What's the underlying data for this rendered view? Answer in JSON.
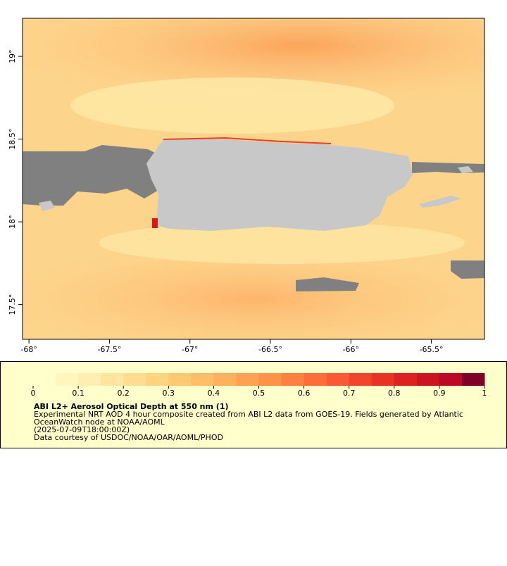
{
  "map": {
    "xlim": [
      -68.04,
      -65.17
    ],
    "ylim": [
      17.29,
      19.23
    ],
    "xticks": [
      {
        "value": -68,
        "label": "-68°"
      },
      {
        "value": -67.5,
        "label": "-67.5°"
      },
      {
        "value": -67,
        "label": "-67°"
      },
      {
        "value": -66.5,
        "label": "-66.5°"
      },
      {
        "value": -66,
        "label": "-66°"
      },
      {
        "value": -65.5,
        "label": "-65.5°"
      }
    ],
    "yticks": [
      {
        "value": 17.5,
        "label": "17.5°"
      },
      {
        "value": 18,
        "label": "18°"
      },
      {
        "value": 18.5,
        "label": "18.5°"
      },
      {
        "value": 19,
        "label": "19°"
      }
    ]
  },
  "colorbar": {
    "range": [
      0,
      1
    ],
    "ticks": [
      0,
      0.1,
      0.2,
      0.3,
      0.4,
      0.5,
      0.6,
      0.7,
      0.8,
      0.9,
      1
    ],
    "colors": [
      "#ffffcc",
      "#fff6bf",
      "#ffeeb0",
      "#fee6a0",
      "#fedd90",
      "#fed481",
      "#fec973",
      "#febe67",
      "#fdb15c",
      "#fda251",
      "#fd9347",
      "#fc8140",
      "#fc6d39",
      "#f95a33",
      "#f1452b",
      "#e83324",
      "#dc221f",
      "#cc141f",
      "#bc0824",
      "#800026"
    ],
    "title": "ABI L2+ Aerosol Optical Depth at 550 nm (1)",
    "description": [
      "Experimental NRT AOD 4 hour composite created from ABI L2 data from GOES-19. Fields generated by Atlantic",
      "OceanWatch node at NOAA/AOML",
      "(2025-07-09T18:00:00Z)",
      "Data courtesy of USDOC/NOAA/OAR/AOML/PHOD"
    ]
  }
}
